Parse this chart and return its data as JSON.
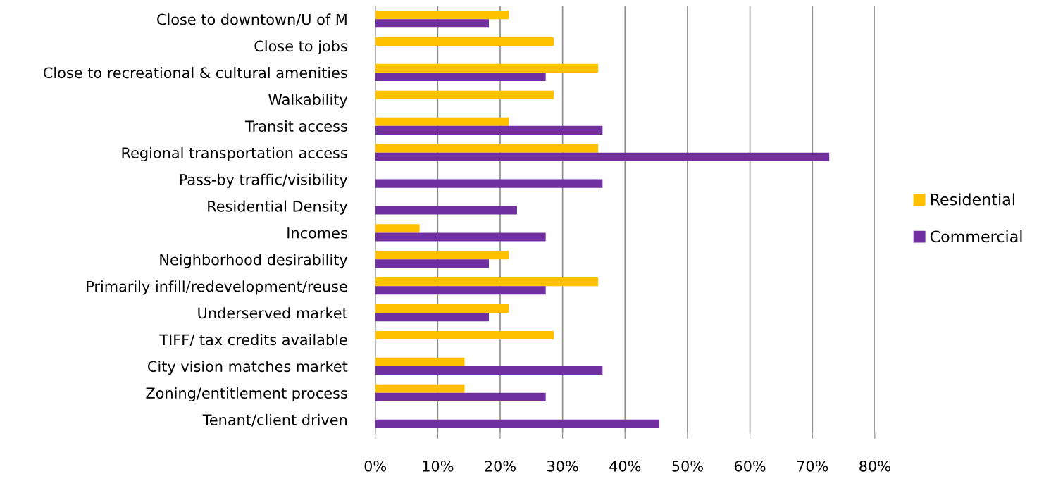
{
  "chart_data": {
    "type": "bar",
    "orientation": "horizontal",
    "categories": [
      "Close to downtown/U of M",
      "Close to jobs",
      "Close to recreational & cultural amenities",
      "Walkability",
      "Transit access",
      "Regional transportation access",
      "Pass-by traffic/visibility",
      "Residential Density",
      "Incomes",
      "Neighborhood desirability",
      "Primarily infill/redevelopment/reuse",
      "Underserved market",
      "TIFF/ tax credits available",
      "City vision matches market",
      "Zoning/entitlement process",
      "Tenant/client driven"
    ],
    "series": [
      {
        "name": "Residential",
        "color": "#ffc000",
        "values": [
          21.4,
          28.6,
          35.7,
          28.6,
          21.4,
          35.7,
          null,
          null,
          7.1,
          21.4,
          35.7,
          21.4,
          28.6,
          14.3,
          14.3,
          null
        ]
      },
      {
        "name": "Commercial",
        "color": "#7030a0",
        "values": [
          18.2,
          null,
          27.3,
          null,
          36.4,
          72.7,
          36.4,
          22.7,
          27.3,
          18.2,
          27.3,
          18.2,
          null,
          36.4,
          27.3,
          45.5
        ]
      }
    ],
    "xlim": [
      0,
      80
    ],
    "xticks": [
      {
        "value": 0,
        "label": "0%"
      },
      {
        "value": 10,
        "label": "10%"
      },
      {
        "value": 20,
        "label": "20%"
      },
      {
        "value": 30,
        "label": "30%"
      },
      {
        "value": 40,
        "label": "40%"
      },
      {
        "value": 50,
        "label": "50%"
      },
      {
        "value": 60,
        "label": "60%"
      },
      {
        "value": 70,
        "label": "70%"
      },
      {
        "value": 80,
        "label": "80%"
      }
    ],
    "grid": "x",
    "legend": "right"
  }
}
